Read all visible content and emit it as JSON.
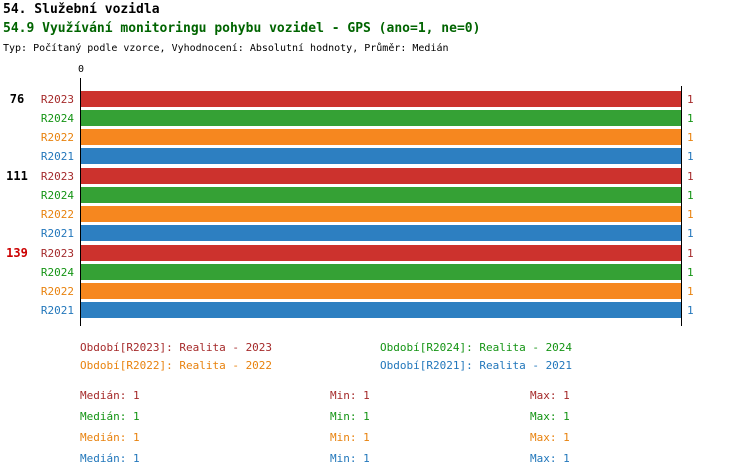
{
  "header": {
    "section_title": "54. Služební vozidla"
  },
  "chart_data": {
    "type": "bar",
    "orientation": "horizontal",
    "title": "54.9 Využívání monitoringu pohybu vozidel - GPS (ano=1, ne=0)",
    "meta": "Typ: Počítaný podle vzorce, Vyhodnocení: Absolutní hodnoty, Průměr: Medián",
    "x_axis": {
      "origin_label": "0",
      "range": [
        0,
        1
      ]
    },
    "series_order": [
      "R2023",
      "R2024",
      "R2022",
      "R2021"
    ],
    "series_colors": {
      "R2023": "#cc322d",
      "R2024": "#35a135",
      "R2022": "#f6871f",
      "R2021": "#2d7fc1"
    },
    "label_colors": {
      "R2023": "#a52a2a",
      "R2024": "#149414",
      "R2022": "#e8820e",
      "R2021": "#2277bb"
    },
    "groups": [
      {
        "label": "76",
        "label_color": "#000000",
        "bars": [
          {
            "period": "R2023",
            "value": 1
          },
          {
            "period": "R2024",
            "value": 1
          },
          {
            "period": "R2022",
            "value": 1
          },
          {
            "period": "R2021",
            "value": 1
          }
        ]
      },
      {
        "label": "111",
        "label_color": "#000000",
        "bars": [
          {
            "period": "R2023",
            "value": 1
          },
          {
            "period": "R2024",
            "value": 1
          },
          {
            "period": "R2022",
            "value": 1
          },
          {
            "period": "R2021",
            "value": 1
          }
        ]
      },
      {
        "label": "139",
        "label_color": "#cc0000",
        "bars": [
          {
            "period": "R2023",
            "value": 1
          },
          {
            "period": "R2024",
            "value": 1
          },
          {
            "period": "R2022",
            "value": 1
          },
          {
            "period": "R2021",
            "value": 1
          }
        ]
      }
    ]
  },
  "legend": [
    {
      "name": "Období[R2023]:",
      "value": "Realita - 2023",
      "color": "#a52a2a"
    },
    {
      "name": "Období[R2024]:",
      "value": "Realita - 2024",
      "color": "#149414"
    },
    {
      "name": "Období[R2022]:",
      "value": "Realita - 2022",
      "color": "#e8820e"
    },
    {
      "name": "Období[R2021]:",
      "value": "Realita - 2021",
      "color": "#2277bb"
    }
  ],
  "stats": [
    {
      "period": "R2023",
      "color": "#a52a2a",
      "median_label": "Medián:",
      "median": "1",
      "min_label": "Min:",
      "min": "1",
      "max_label": "Max:",
      "max": "1"
    },
    {
      "period": "R2024",
      "color": "#149414",
      "median_label": "Medián:",
      "median": "1",
      "min_label": "Min:",
      "min": "1",
      "max_label": "Max:",
      "max": "1"
    },
    {
      "period": "R2022",
      "color": "#e8820e",
      "median_label": "Medián:",
      "median": "1",
      "min_label": "Min:",
      "min": "1",
      "max_label": "Max:",
      "max": "1"
    },
    {
      "period": "R2021",
      "color": "#2277bb",
      "median_label": "Medián:",
      "median": "1",
      "min_label": "Min:",
      "min": "1",
      "max_label": "Max:",
      "max": "1"
    }
  ]
}
